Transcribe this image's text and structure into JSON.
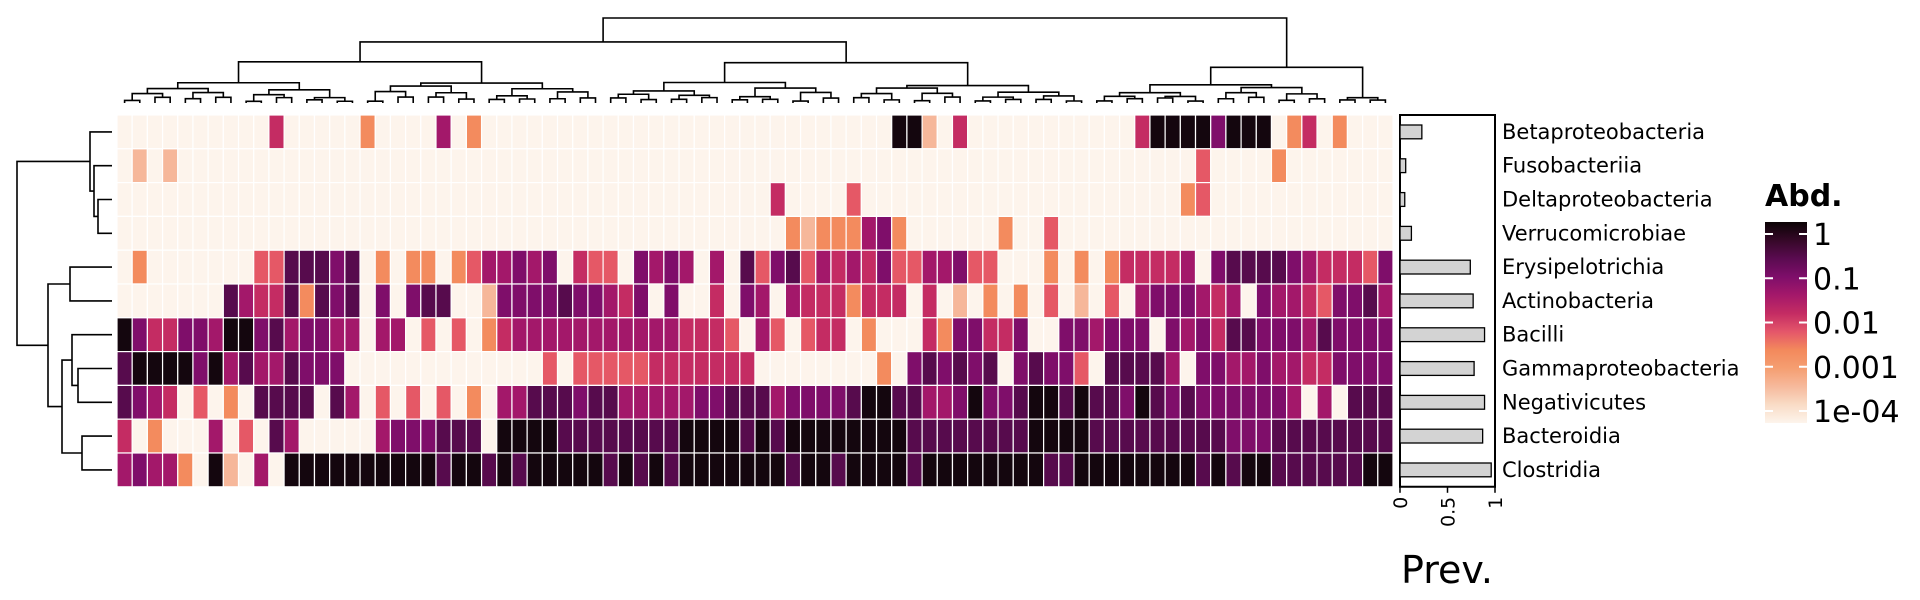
{
  "chart_data": {
    "type": "heatmap",
    "row_labels": [
      "Betaproteobacteria",
      "Fusobacteriia",
      "Deltaproteobacteria",
      "Verrucomicrobiae",
      "Erysipelotrichia",
      "Actinobacteria",
      "Bacilli",
      "Gammaproteobacteria",
      "Negativicutes",
      "Bacteroidia",
      "Clostridia"
    ],
    "n_samples": 84,
    "log10_abundance": [
      "..........4.....2....5.2...........................881.4...........488886888.24.2.......................................................",
      ".1.1...................................................................3....2.....................................33.....................",
      "...........................................4....3.....................23.......................................4..........................",
      "............................................21222562......2..3.............................................5.............................",
      ".2.......3377767.2.22.2355656.433.6565.5.73673545463355633...2.2.244445.677776544436667333333445566544.5.6.6.3........................",
      ".......754472767.6.677..16666766546.6..4.65.54442444.4.1.2.2.3.1.3.5666545.6554366755577667...3335......",
      "8644665886756655.55.3.3.24555555555554443.53.344.2...4266446..665666.65647766657666646566676.566666477.8.3.5",
      "788986857557666.............3.333334444444........2.676767.67663.77775.66556554466666666.554446666787.",
      "7654.3.2.7777.75.3.3.3.2.55777677555556677756666788775568667887877687676666665.5.7777777777777",
      "4.2...5.3.75.....5666777.8888777777778888787888888887777777788887777777776667777777778",
      "56552.81.5.9888999898788787888987878788888887887888978888888877888888887878877777788988888889889888877885."
    ],
    "row_prevalence": [
      0.23,
      0.06,
      0.05,
      0.12,
      0.74,
      0.77,
      0.89,
      0.78,
      0.89,
      0.87,
      0.96
    ],
    "legend": {
      "title": "Abd.",
      "ticks": [
        "1",
        "0.1",
        "0.01",
        "0.001",
        "1e-04"
      ],
      "colors": [
        "#fdf4ec",
        "#f9dcc6",
        "#f6b99c",
        "#f59e71",
        "#f3895c",
        "#e4566a",
        "#c42c63",
        "#a4186a",
        "#7f0e6a",
        "#5a0b50",
        "#350828",
        "#0b0405"
      ]
    },
    "prevalence_axis": {
      "label": "Prev.",
      "ticks": [
        "0",
        "0.5",
        "1"
      ],
      "range": [
        0,
        1
      ]
    }
  }
}
